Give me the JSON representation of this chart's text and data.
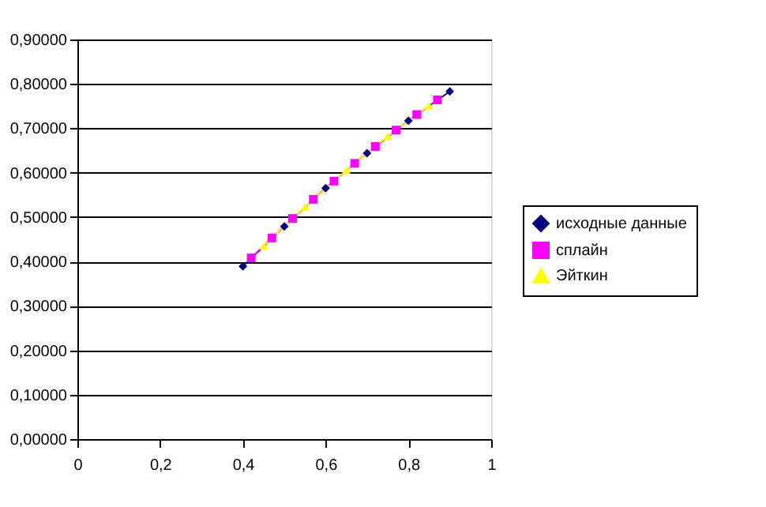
{
  "chart_data": {
    "type": "line",
    "series": [
      {
        "name": "исходные данные",
        "color": "#000080",
        "marker": "diamond",
        "x": [
          0.4,
          0.5,
          0.6,
          0.7,
          0.8,
          0.9
        ],
        "values": [
          0.389,
          0.479,
          0.565,
          0.644,
          0.717,
          0.783
        ]
      },
      {
        "name": "сплайн",
        "color": "#ff00ff",
        "marker": "square",
        "x": [
          0.42,
          0.47,
          0.52,
          0.57,
          0.62,
          0.67,
          0.72,
          0.77,
          0.82,
          0.87
        ],
        "values": [
          0.408,
          0.453,
          0.497,
          0.54,
          0.581,
          0.621,
          0.659,
          0.696,
          0.731,
          0.764
        ]
      },
      {
        "name": "Эйткин",
        "color": "#ffff00",
        "marker": "triangle",
        "x": [
          0.45,
          0.55,
          0.65,
          0.75,
          0.85
        ],
        "values": [
          0.435,
          0.523,
          0.605,
          0.682,
          0.751
        ]
      }
    ],
    "xlim": [
      0,
      1
    ],
    "ylim": [
      0,
      0.9
    ],
    "xticks": [
      0,
      {
        "value": 0.2,
        "label": "0,2"
      },
      {
        "value": 0.4,
        "label": "0,4"
      },
      {
        "value": 0.6,
        "label": "0,6"
      },
      {
        "value": 0.8,
        "label": "0,8"
      },
      1
    ],
    "yticks": [
      {
        "value": 0,
        "label": "0,00000"
      },
      {
        "value": 0.1,
        "label": "0,10000"
      },
      {
        "value": 0.2,
        "label": "0,20000"
      },
      {
        "value": 0.3,
        "label": "0,30000"
      },
      {
        "value": 0.4,
        "label": "0,40000"
      },
      {
        "value": 0.5,
        "label": "0,50000"
      },
      {
        "value": 0.6,
        "label": "0,60000"
      },
      {
        "value": 0.7,
        "label": "0,70000"
      },
      {
        "value": 0.8,
        "label": "0,80000"
      },
      {
        "value": 0.9,
        "label": "0,90000"
      }
    ],
    "grid": "y",
    "legend": "right",
    "line_style": "solid"
  }
}
